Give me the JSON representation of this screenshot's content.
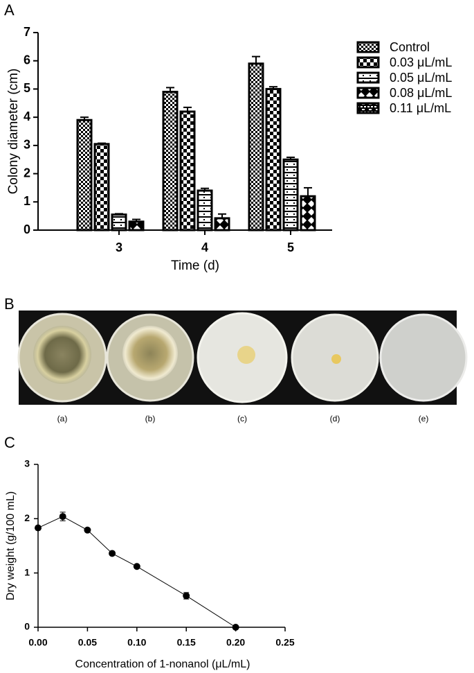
{
  "panel_labels": [
    "A",
    "B",
    "C"
  ],
  "photo_captions": [
    "(a)",
    "(b)",
    "(c)",
    "(d)",
    "(e)"
  ],
  "chart_data": [
    {
      "type": "bar",
      "y_label": "Colony diameter (cm)",
      "x_label": "Time (d)",
      "categories": [
        "3",
        "4",
        "5"
      ],
      "ylim": [
        0,
        7
      ],
      "yticks": [
        0,
        1,
        2,
        3,
        4,
        5,
        6,
        7
      ],
      "series": [
        {
          "name": "Control",
          "pattern": "checker-small",
          "values": [
            3.9,
            4.9,
            5.9
          ],
          "errors": [
            0.1,
            0.15,
            0.25
          ]
        },
        {
          "name": "0.03 μL/mL",
          "pattern": "checker-large",
          "values": [
            3.05,
            4.2,
            5.0
          ],
          "errors": [
            0.03,
            0.15,
            0.08
          ]
        },
        {
          "name": "0.05 μL/mL",
          "pattern": "stripes",
          "values": [
            0.55,
            1.4,
            2.5
          ],
          "errors": [
            0.03,
            0.08,
            0.08
          ]
        },
        {
          "name": "0.08 μL/mL",
          "pattern": "diamond",
          "values": [
            0.3,
            0.42,
            1.2
          ],
          "errors": [
            0.08,
            0.15,
            0.3
          ]
        },
        {
          "name": "0.11 μL/mL",
          "pattern": "bricks",
          "values": [
            0,
            0,
            0
          ],
          "errors": [
            0,
            0,
            0
          ]
        }
      ]
    },
    {
      "type": "line",
      "y_label": "Dry weight (g/100 mL)",
      "x_label": "Concentration of 1-nonanol (μL/mL)",
      "x": [
        0,
        0.025,
        0.05,
        0.075,
        0.1,
        0.15,
        0.2
      ],
      "values": [
        1.83,
        2.04,
        1.79,
        1.36,
        1.12,
        0.58,
        0
      ],
      "errors": [
        0.03,
        0.08,
        0.03,
        0.02,
        0.02,
        0.06,
        0
      ],
      "color": "#000000",
      "xlim": [
        0,
        0.25
      ],
      "xticks": [
        {
          "value": 0,
          "label": "0.00"
        },
        {
          "value": 0.05,
          "label": "0.05"
        },
        {
          "value": 0.1,
          "label": "0.10"
        },
        {
          "value": 0.15,
          "label": "0.15"
        },
        {
          "value": 0.2,
          "label": "0.20"
        },
        {
          "value": 0.25,
          "label": "0.25"
        }
      ],
      "ylim": [
        0,
        3
      ],
      "yticks": [
        0,
        1,
        2,
        3
      ]
    }
  ]
}
